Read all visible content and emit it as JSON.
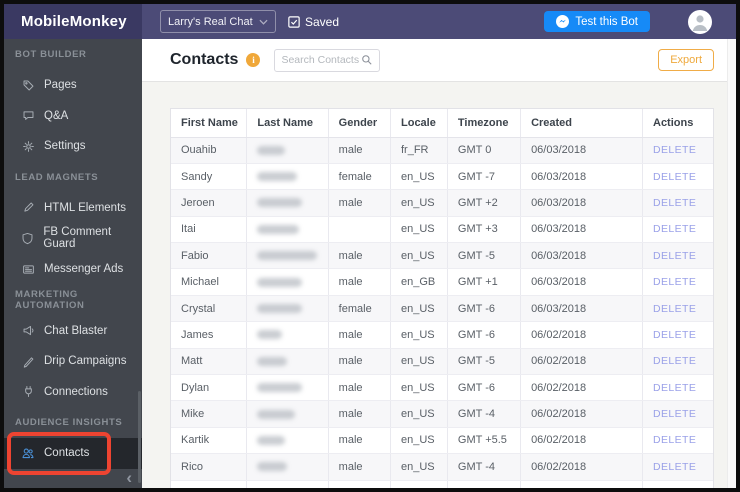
{
  "topbar": {
    "logo": "MobileMonkey",
    "bot_selector_value": "Larry's Real Chat...",
    "saved_label": "Saved",
    "test_bot_label": "Test this Bot"
  },
  "sidebar": {
    "sections": [
      {
        "label": "BOT BUILDER",
        "items": [
          {
            "label": "Pages",
            "icon": "tag-icon"
          },
          {
            "label": "Q&A",
            "icon": "chat-icon"
          },
          {
            "label": "Settings",
            "icon": "gear-icon"
          }
        ]
      },
      {
        "label": "LEAD MAGNETS",
        "items": [
          {
            "label": "HTML Elements",
            "icon": "pen-icon"
          },
          {
            "label": "FB Comment Guard",
            "icon": "shield-icon"
          },
          {
            "label": "Messenger Ads",
            "icon": "ad-icon"
          }
        ]
      },
      {
        "label": "MARKETING AUTOMATION",
        "items": [
          {
            "label": "Chat Blaster",
            "icon": "megaphone-icon"
          },
          {
            "label": "Drip Campaigns",
            "icon": "drip-icon"
          },
          {
            "label": "Connections",
            "icon": "plug-icon"
          }
        ]
      },
      {
        "label": "AUDIENCE INSIGHTS",
        "items": [
          {
            "label": "Contacts",
            "icon": "contacts-icon",
            "active": true,
            "annotated": true
          }
        ]
      }
    ]
  },
  "page": {
    "title": "Contacts",
    "search_placeholder": "Search Contacts",
    "export_label": "Export"
  },
  "table": {
    "columns": [
      "First Name",
      "Last Name",
      "Gender",
      "Locale",
      "Timezone",
      "Created",
      "Actions"
    ],
    "delete_label": "DELETE",
    "rows": [
      {
        "first_name": "Ouahib",
        "last_name_redacted": true,
        "redact_width": 28,
        "gender": "male",
        "locale": "fr_FR",
        "timezone": "GMT 0",
        "created": "06/03/2018"
      },
      {
        "first_name": "Sandy",
        "last_name_redacted": true,
        "redact_width": 40,
        "gender": "female",
        "locale": "en_US",
        "timezone": "GMT -7",
        "created": "06/03/2018"
      },
      {
        "first_name": "Jeroen",
        "last_name_redacted": true,
        "redact_width": 45,
        "gender": "male",
        "locale": "en_US",
        "timezone": "GMT +2",
        "created": "06/03/2018"
      },
      {
        "first_name": "Itai",
        "last_name_redacted": true,
        "redact_width": 42,
        "gender": "",
        "locale": "en_US",
        "timezone": "GMT +3",
        "created": "06/03/2018"
      },
      {
        "first_name": "Fabio",
        "last_name_redacted": true,
        "redact_width": 60,
        "gender": "male",
        "locale": "en_US",
        "timezone": "GMT -5",
        "created": "06/03/2018"
      },
      {
        "first_name": "Michael",
        "last_name_redacted": true,
        "redact_width": 45,
        "gender": "male",
        "locale": "en_GB",
        "timezone": "GMT +1",
        "created": "06/03/2018"
      },
      {
        "first_name": "Crystal",
        "last_name_redacted": true,
        "redact_width": 45,
        "gender": "female",
        "locale": "en_US",
        "timezone": "GMT -6",
        "created": "06/03/2018"
      },
      {
        "first_name": "James",
        "last_name_redacted": true,
        "redact_width": 25,
        "gender": "male",
        "locale": "en_US",
        "timezone": "GMT -6",
        "created": "06/02/2018"
      },
      {
        "first_name": "Matt",
        "last_name_redacted": true,
        "redact_width": 30,
        "gender": "male",
        "locale": "en_US",
        "timezone": "GMT -5",
        "created": "06/02/2018"
      },
      {
        "first_name": "Dylan",
        "last_name_redacted": true,
        "redact_width": 45,
        "gender": "male",
        "locale": "en_US",
        "timezone": "GMT -6",
        "created": "06/02/2018"
      },
      {
        "first_name": "Mike",
        "last_name_redacted": true,
        "redact_width": 38,
        "gender": "male",
        "locale": "en_US",
        "timezone": "GMT -4",
        "created": "06/02/2018"
      },
      {
        "first_name": "Kartik",
        "last_name_redacted": true,
        "redact_width": 28,
        "gender": "male",
        "locale": "en_US",
        "timezone": "GMT +5.5",
        "created": "06/02/2018"
      },
      {
        "first_name": "Rico",
        "last_name_redacted": true,
        "redact_width": 30,
        "gender": "male",
        "locale": "en_US",
        "timezone": "GMT -4",
        "created": "06/02/2018"
      }
    ]
  },
  "colors": {
    "topbar": "#4c4b77",
    "logo_bg": "#3a3962",
    "sidebar": "#42464d",
    "annotation_red": "#ee4431",
    "test_bot_blue": "#168af7",
    "export_orange": "#efa93c",
    "info_orange": "#f0a83a",
    "delete_link": "#9aa1e8",
    "contacts_icon_blue": "#4a90d6"
  }
}
